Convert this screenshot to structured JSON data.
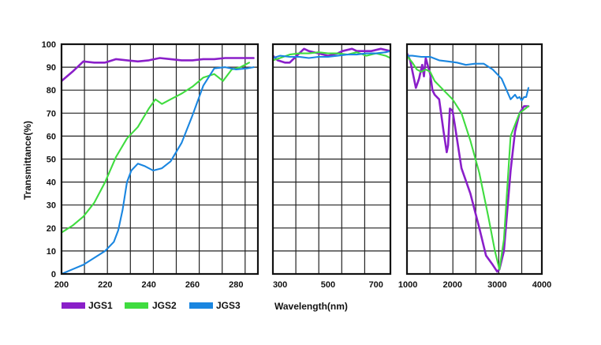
{
  "chart_data": {
    "type": "line",
    "ylabel": "Transmittance(%)",
    "xlabel": "Wavelength(nm)",
    "ylim": [
      0,
      100
    ],
    "y_ticks": [
      0,
      10,
      20,
      30,
      40,
      50,
      60,
      70,
      80,
      90,
      100
    ],
    "grid": true,
    "legend_position": "bottom-left",
    "panels": [
      {
        "xlim": [
          200,
          290
        ],
        "x_ticks": [
          200,
          220,
          240,
          260,
          280
        ],
        "series": [
          {
            "name": "JGS1",
            "color": "#8a1fc9",
            "x": [
              200,
              205,
              210,
              215,
              220,
              225,
              230,
              235,
              240,
              245,
              250,
              255,
              260,
              265,
              270,
              275,
              280,
              285,
              288
            ],
            "y": [
              84,
              88,
              92.5,
              92,
              92,
              93.5,
              93,
              92.5,
              93,
              94,
              93.5,
              93,
              93,
              93.5,
              93.5,
              94,
              94,
              94,
              94
            ]
          },
          {
            "name": "JGS2",
            "color": "#3fdc3f",
            "x": [
              200,
              205,
              210,
              215,
              220,
              225,
              230,
              235,
              240,
              243,
              246,
              250,
              255,
              260,
              265,
              270,
              274,
              278,
              282,
              286
            ],
            "y": [
              18,
              21,
              25,
              31,
              40,
              51,
              59,
              64,
              72,
              76,
              74,
              76,
              78.5,
              81.5,
              85.5,
              87,
              84,
              89,
              90,
              92
            ]
          },
          {
            "name": "JGS3",
            "color": "#1a86e0",
            "x": [
              200,
              205,
              210,
              215,
              220,
              224,
              226,
              228,
              230,
              232,
              235,
              238,
              242,
              246,
              250,
              255,
              260,
              265,
              270,
              275,
              280,
              285,
              288
            ],
            "y": [
              0,
              2,
              4,
              7,
              10,
              14,
              19,
              28,
              40,
              45,
              48,
              47,
              45,
              46,
              49,
              57,
              69,
              82,
              89.5,
              90,
              89,
              89.5,
              90
            ]
          }
        ]
      },
      {
        "xlim": [
          270,
          760
        ],
        "x_ticks": [
          300,
          500,
          700
        ],
        "series": [
          {
            "name": "JGS1",
            "color": "#8a1fc9",
            "x": [
              270,
              290,
              320,
              340,
              380,
              400,
              420,
              460,
              500,
              540,
              560,
              600,
              620,
              680,
              720,
              760
            ],
            "y": [
              95,
              93,
              92,
              92,
              96,
              98,
              97,
              96,
              95,
              96,
              97,
              98,
              97,
              97,
              98,
              97
            ]
          },
          {
            "name": "JGS2",
            "color": "#3fdc3f",
            "x": [
              270,
              300,
              340,
              380,
              420,
              460,
              500,
              540,
              580,
              620,
              660,
              700,
              740,
              760
            ],
            "y": [
              93,
              94,
              95.5,
              96,
              96,
              96.5,
              96,
              96,
              95.5,
              96.5,
              95,
              96,
              95,
              94
            ]
          },
          {
            "name": "JGS3",
            "color": "#1a86e0",
            "x": [
              270,
              300,
              340,
              380,
              420,
              460,
              500,
              540,
              580,
              620,
              660,
              700,
              740,
              760
            ],
            "y": [
              94,
              95,
              94.5,
              94.5,
              94,
              94.5,
              94.5,
              95,
              95.5,
              95.5,
              96,
              96,
              96.5,
              97
            ]
          }
        ]
      },
      {
        "xlim": [
          980,
          4000
        ],
        "x_ticks": [
          1000,
          2000,
          3000,
          4000
        ],
        "series": [
          {
            "name": "JGS1",
            "color": "#8a1fc9",
            "x": [
              980,
              1050,
              1180,
              1250,
              1320,
              1360,
              1400,
              1500,
              1550,
              1600,
              1700,
              1800,
              1870,
              1900,
              1940,
              2000,
              2050,
              2200,
              2400,
              2600,
              2750,
              2900,
              3000,
              3050,
              3150,
              3300,
              3400,
              3500,
              3600,
              3700
            ],
            "y": [
              96,
              93,
              81,
              85,
              91,
              86,
              94,
              87,
              80,
              78,
              76,
              62,
              53,
              56,
              72,
              71,
              65,
              46,
              35,
              20,
              8,
              4,
              1,
              2,
              10,
              45,
              62,
              70,
              73,
              73
            ]
          },
          {
            "name": "JGS2",
            "color": "#3fdc3f",
            "x": [
              980,
              1100,
              1200,
              1300,
              1400,
              1500,
              1600,
              1800,
              2000,
              2200,
              2400,
              2600,
              2800,
              2950,
              3050,
              3150,
              3300,
              3500,
              3700
            ],
            "y": [
              95,
              92,
              89,
              88,
              89,
              88,
              84,
              80,
              76,
              70,
              58,
              44,
              25,
              10,
              2,
              15,
              60,
              70,
              73
            ]
          },
          {
            "name": "JGS3",
            "color": "#1a86e0",
            "x": [
              980,
              1100,
              1300,
              1500,
              1700,
              1900,
              2100,
              2300,
              2500,
              2700,
              2900,
              3100,
              3300,
              3350,
              3400,
              3450,
              3500,
              3550,
              3600,
              3650,
              3700
            ],
            "y": [
              95,
              95,
              94.5,
              94.5,
              93,
              92.5,
              92,
              91,
              91.5,
              91.5,
              89,
              85,
              76,
              77,
              78,
              76.5,
              77,
              75.5,
              77,
              77,
              81
            ]
          }
        ]
      }
    ]
  },
  "legend": [
    {
      "label": "JGS1",
      "color": "#8a1fc9"
    },
    {
      "label": "JGS2",
      "color": "#3fdc3f"
    },
    {
      "label": "JGS3",
      "color": "#1a86e0"
    }
  ]
}
